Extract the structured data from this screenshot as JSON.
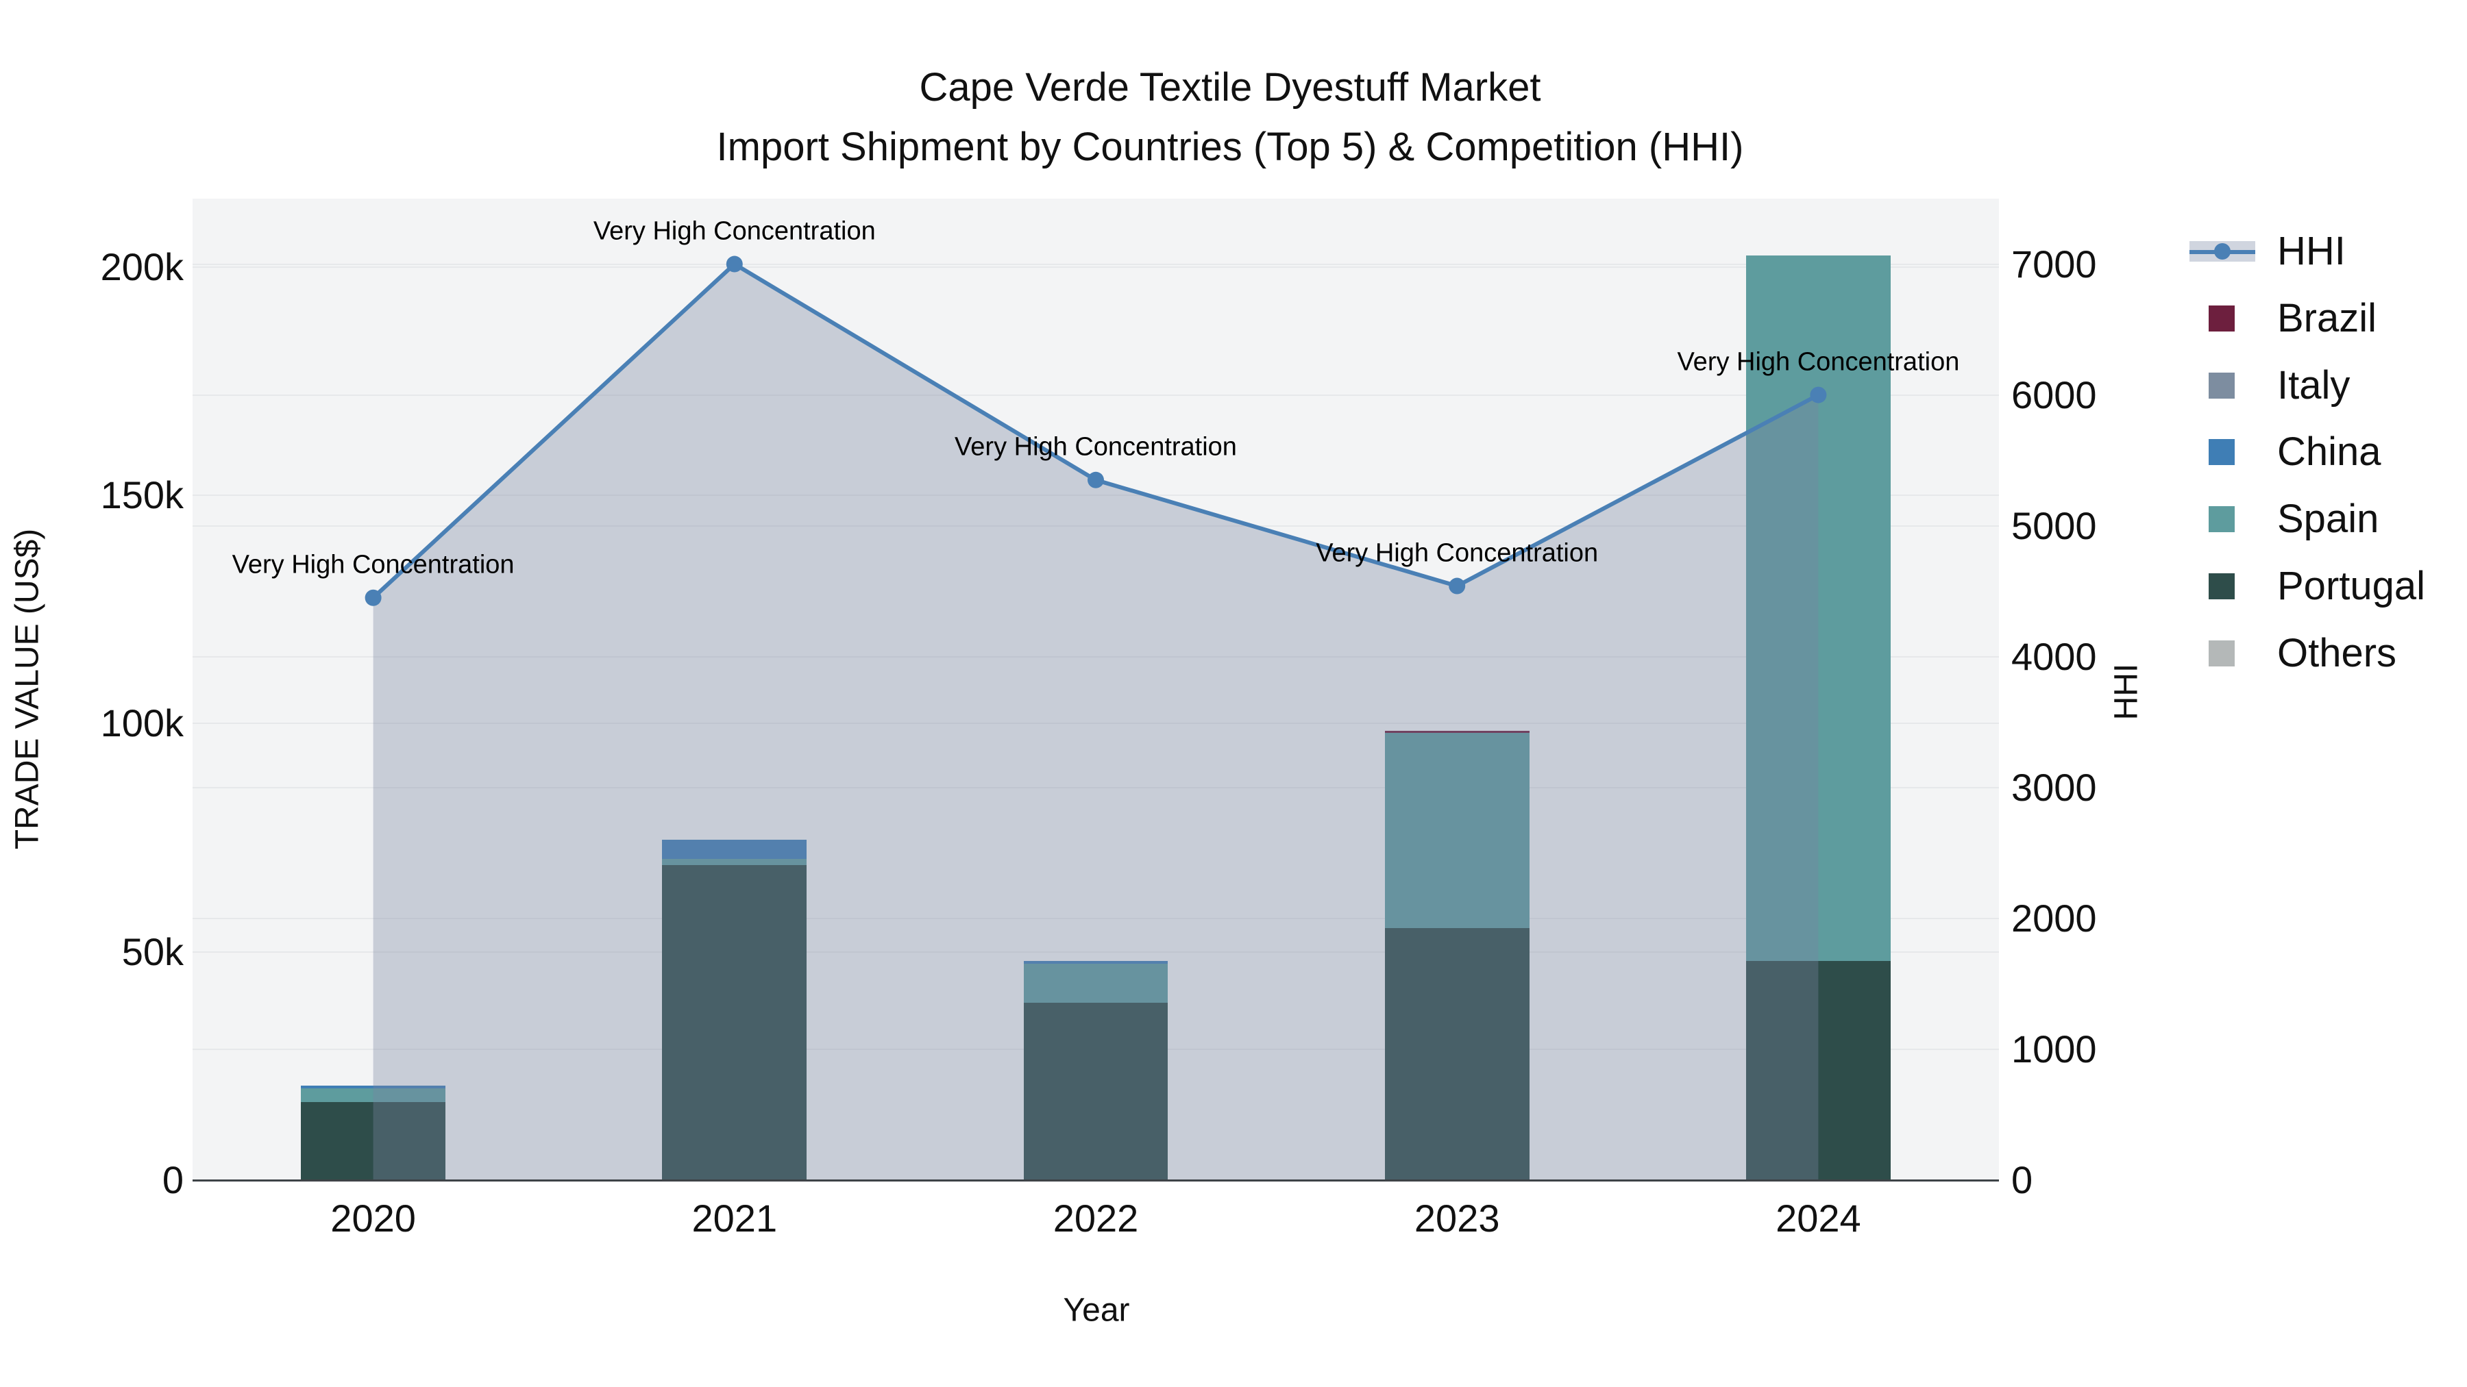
{
  "title": {
    "line1": "Cape Verde Textile Dyestuff Market",
    "line2": "Import Shipment by Countries (Top 5) & Competition (HHI)"
  },
  "chart_data": {
    "type": "bar+line",
    "categories": [
      "2020",
      "2021",
      "2022",
      "2023",
      "2024"
    ],
    "bar_unit": "US$",
    "stack_order_bottom_to_top": [
      "Portugal",
      "Spain",
      "China",
      "Italy",
      "Brazil",
      "Others"
    ],
    "series": [
      {
        "name": "Brazil",
        "color": "#6D1F3E",
        "values": [
          0,
          0,
          0,
          400,
          0
        ]
      },
      {
        "name": "Italy",
        "color": "#7D8DA0",
        "values": [
          0,
          0,
          0,
          0,
          0
        ]
      },
      {
        "name": "China",
        "color": "#3F7EB5",
        "values": [
          600,
          4200,
          600,
          0,
          0
        ]
      },
      {
        "name": "Spain",
        "color": "#5E9C9E",
        "values": [
          3000,
          1400,
          8600,
          42800,
          154600
        ]
      },
      {
        "name": "Portugal",
        "color": "#2E4D4A",
        "values": [
          17100,
          69000,
          38800,
          55200,
          48000
        ]
      },
      {
        "name": "Others",
        "color": "#B4B8B8",
        "values": [
          0,
          0,
          0,
          0,
          0
        ]
      }
    ],
    "bar_totals": [
      20700,
      74600,
      48000,
      98400,
      202600
    ],
    "line_series": {
      "name": "HHI",
      "values": [
        4450,
        7000,
        5350,
        4540,
        6000
      ],
      "color": "#4A80B5",
      "area_fill": "rgba(119,133,160,0.35)"
    },
    "annotations": [
      {
        "x": "2020",
        "text": "Very High Concentration"
      },
      {
        "x": "2021",
        "text": "Very High Concentration"
      },
      {
        "x": "2022",
        "text": "Very High Concentration"
      },
      {
        "x": "2023",
        "text": "Very High Concentration"
      },
      {
        "x": "2024",
        "text": "Very High Concentration"
      }
    ],
    "left_axis": {
      "title": "TRADE VALUE (US$)",
      "tick_values": [
        0,
        50000,
        100000,
        150000,
        200000
      ],
      "tick_labels": [
        "0",
        "50k",
        "100k",
        "150k",
        "200k"
      ],
      "range": [
        0,
        215000
      ],
      "grid": true
    },
    "right_axis": {
      "title": "HHI",
      "tick_values": [
        0,
        1000,
        2000,
        3000,
        4000,
        5000,
        6000,
        7000
      ],
      "tick_labels": [
        "0",
        "1000",
        "2000",
        "3000",
        "4000",
        "5000",
        "6000",
        "7000"
      ],
      "range": [
        0,
        7500
      ],
      "grid": true
    },
    "x_axis": {
      "title": "Year"
    },
    "legend_position": "top-right",
    "legend": [
      {
        "label": "HHI",
        "type": "line"
      },
      {
        "label": "Brazil",
        "type": "square",
        "color": "#6D1F3E"
      },
      {
        "label": "Italy",
        "type": "square",
        "color": "#7D8DA0"
      },
      {
        "label": "China",
        "type": "square",
        "color": "#3F7EB5"
      },
      {
        "label": "Spain",
        "type": "square",
        "color": "#5E9C9E"
      },
      {
        "label": "Portugal",
        "type": "square",
        "color": "#2E4D4A"
      },
      {
        "label": "Others",
        "type": "square",
        "color": "#B4B8B8"
      }
    ]
  },
  "colors": {
    "plot_background": "#f3f4f5",
    "gridline": "#e6e8ea",
    "axis_line": "#3e4347",
    "text": "#111111",
    "hhi_line": "#4A80B5",
    "area_overlay": "rgba(119,133,160,0.35)",
    "legend_band": "#d0d5df"
  }
}
